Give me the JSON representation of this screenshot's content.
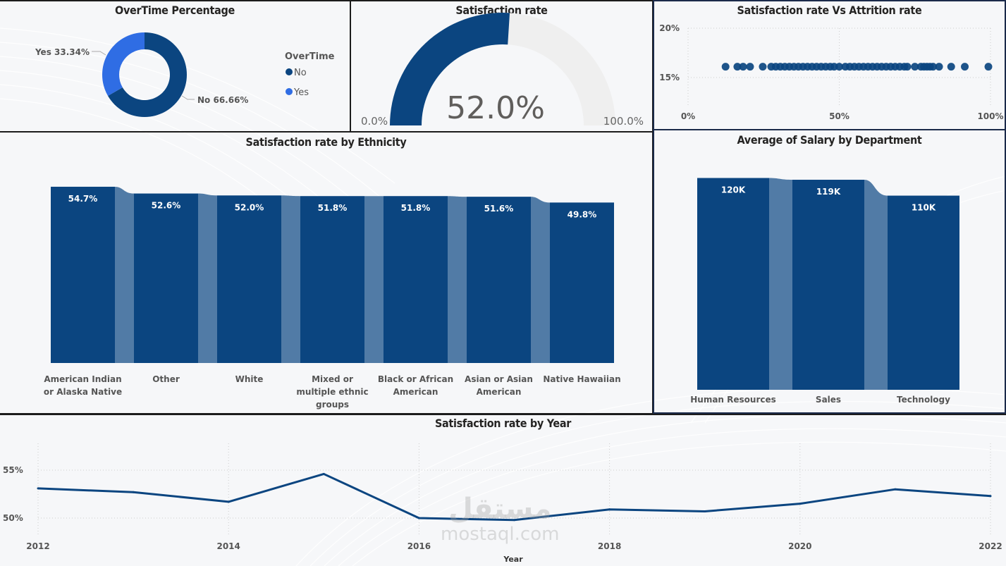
{
  "colors": {
    "primary": "#0b4580",
    "secondary": "#2f6de4",
    "connector": "#517ba6",
    "gauge_track": "#efefef",
    "title": "#252423",
    "label": "#555555"
  },
  "overtime": {
    "title": "OverTime Percentage",
    "legend_title": "OverTime",
    "chart_data": {
      "type": "pie",
      "title": "OverTime Percentage",
      "labels": [
        "No",
        "Yes"
      ],
      "values": [
        66.66,
        33.34
      ],
      "data_labels": [
        "No 66.66%",
        "Yes 33.34%"
      ],
      "legend": [
        "No",
        "Yes"
      ],
      "legend_position": "right"
    }
  },
  "gauge": {
    "title": "Satisfaction rate",
    "value_label": "52.0%",
    "min_label": "0.0%",
    "max_label": "100.0%",
    "value": 52.0,
    "min": 0,
    "max": 100
  },
  "scatter": {
    "title": "Satisfaction rate Vs Attrition rate",
    "chart_data": {
      "type": "scatter",
      "title": "Satisfaction rate Vs Attrition rate",
      "xlabel": "",
      "ylabel": "",
      "xlim": [
        0,
        100
      ],
      "ylim": [
        12,
        20
      ],
      "x_ticks": [
        "0%",
        "50%",
        "100%"
      ],
      "y_ticks": [
        "15%",
        "20%"
      ],
      "x": [
        12.4,
        16.3,
        18.2,
        20.5,
        24.7,
        27.5,
        29,
        30.5,
        32,
        33.5,
        35,
        36.5,
        38,
        39.5,
        41,
        42.5,
        44,
        45.5,
        47,
        48.3,
        50,
        52,
        53.5,
        55,
        56.5,
        58,
        59.5,
        61,
        62.5,
        64,
        65.5,
        67,
        68.5,
        70,
        71.5,
        72.5,
        75,
        77,
        78,
        79,
        80,
        81,
        83,
        87,
        91.5,
        99.3
      ],
      "y": [
        16.1,
        16.1,
        16.1,
        16.1,
        16.1,
        16.1,
        16.1,
        16.1,
        16.1,
        16.1,
        16.1,
        16.1,
        16.1,
        16.1,
        16.1,
        16.1,
        16.1,
        16.1,
        16.1,
        16.1,
        16.1,
        16.1,
        16.1,
        16.1,
        16.1,
        16.1,
        16.1,
        16.1,
        16.1,
        16.1,
        16.1,
        16.1,
        16.1,
        16.1,
        16.1,
        16.1,
        16.1,
        16.1,
        16.1,
        16.1,
        16.1,
        16.1,
        16.1,
        16.1,
        16.1,
        16.1
      ],
      "grid": true
    }
  },
  "ethnicity": {
    "title": "Satisfaction rate by Ethnicity",
    "chart_data": {
      "type": "bar",
      "title": "Satisfaction rate by Ethnicity",
      "categories": [
        [
          "American Indian",
          "or Alaska Native"
        ],
        [
          "Other"
        ],
        [
          "White"
        ],
        [
          "Mixed or",
          "multiple ethnic",
          "groups"
        ],
        [
          "Black or African",
          "American"
        ],
        [
          "Asian or Asian",
          "American"
        ],
        [
          "Native Hawaiian"
        ]
      ],
      "values": [
        54.7,
        52.6,
        52.0,
        51.8,
        51.8,
        51.6,
        49.8
      ],
      "data_labels": [
        "54.7%",
        "52.6%",
        "52.0%",
        "51.8%",
        "51.8%",
        "51.6%",
        "49.8%"
      ],
      "ylim": [
        0,
        56
      ],
      "xlabel": "",
      "ylabel": ""
    }
  },
  "salary": {
    "title": "Average of Salary by Department",
    "chart_data": {
      "type": "bar",
      "title": "Average of Salary by Department",
      "categories": [
        "Human Resources",
        "Sales",
        "Technology"
      ],
      "values": [
        120000,
        119000,
        110000
      ],
      "data_labels": [
        "120K",
        "119K",
        "110K"
      ],
      "ylim": [
        0,
        123000
      ],
      "xlabel": "",
      "ylabel": ""
    }
  },
  "yearly": {
    "title": "Satisfaction rate by Year",
    "chart_data": {
      "type": "line",
      "title": "Satisfaction rate by Year",
      "xlabel": "Year",
      "ylabel": "",
      "x": [
        2012,
        2013,
        2014,
        2015,
        2016,
        2017,
        2018,
        2019,
        2020,
        2021,
        2022
      ],
      "values": [
        53.1,
        52.7,
        51.7,
        54.6,
        50.0,
        49.8,
        50.9,
        50.7,
        51.5,
        53.0,
        52.3
      ],
      "x_ticks": [
        "2012",
        "2014",
        "2016",
        "2018",
        "2020",
        "2022"
      ],
      "y_ticks": [
        "50%",
        "55%"
      ],
      "ylim": [
        48,
        57
      ],
      "grid": true
    }
  },
  "watermark": {
    "arabic": "مستقل",
    "latin": "mostaql.com"
  }
}
